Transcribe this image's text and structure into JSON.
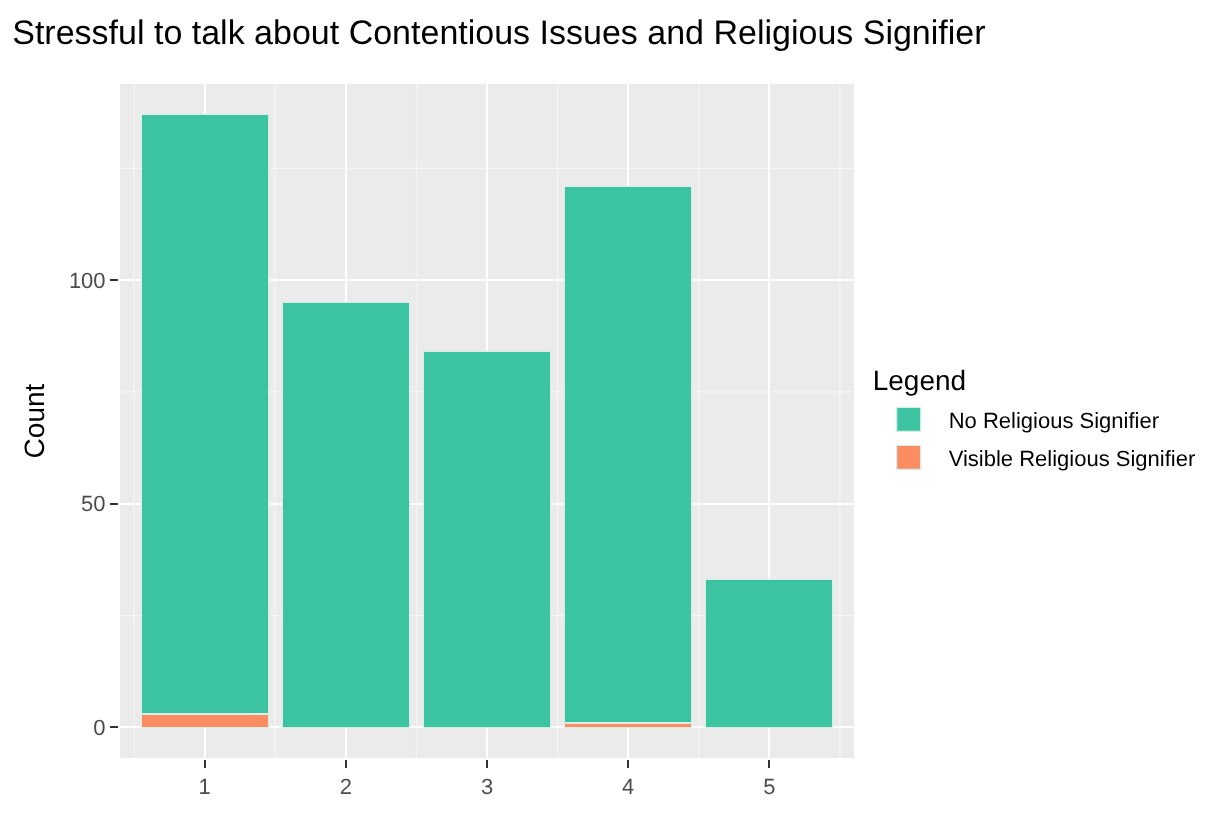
{
  "chart_data": {
    "type": "bar",
    "title": "Stressful to talk about Contentious Issues and Religious Signifier",
    "ylabel": "Count",
    "legend_title": "Legend",
    "categories": [
      "1",
      "2",
      "3",
      "4",
      "5"
    ],
    "stacked": true,
    "series": [
      {
        "name": "Visible Religious Signifier",
        "color": "#fc8d62",
        "values": [
          3,
          0,
          0,
          1,
          0
        ]
      },
      {
        "name": "No Religious Signifier",
        "color": "#3cc4a2",
        "values": [
          134,
          95,
          84,
          120,
          33
        ]
      }
    ],
    "ylim": [
      -6.85,
      143.85
    ],
    "yticks": [
      0,
      50,
      100
    ],
    "grid": true,
    "legend": "right"
  }
}
